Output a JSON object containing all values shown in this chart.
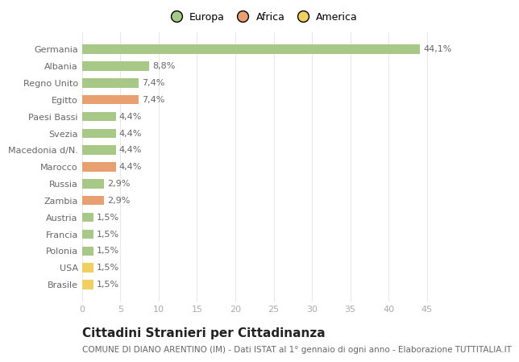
{
  "categories": [
    "Germania",
    "Albania",
    "Regno Unito",
    "Egitto",
    "Paesi Bassi",
    "Svezia",
    "Macedonia d/N.",
    "Marocco",
    "Russia",
    "Zambia",
    "Austria",
    "Francia",
    "Polonia",
    "USA",
    "Brasile"
  ],
  "values": [
    44.1,
    8.8,
    7.4,
    7.4,
    4.4,
    4.4,
    4.4,
    4.4,
    2.9,
    2.9,
    1.5,
    1.5,
    1.5,
    1.5,
    1.5
  ],
  "continent": [
    "Europa",
    "Europa",
    "Europa",
    "Africa",
    "Europa",
    "Europa",
    "Europa",
    "Africa",
    "Europa",
    "Africa",
    "Europa",
    "Europa",
    "Europa",
    "America",
    "America"
  ],
  "labels": [
    "44,1%",
    "8,8%",
    "7,4%",
    "7,4%",
    "4,4%",
    "4,4%",
    "4,4%",
    "4,4%",
    "2,9%",
    "2,9%",
    "1,5%",
    "1,5%",
    "1,5%",
    "1,5%",
    "1,5%"
  ],
  "colors": {
    "Europa": "#a8c888",
    "Africa": "#e8a070",
    "America": "#f0d060"
  },
  "legend_labels": [
    "Europa",
    "Africa",
    "America"
  ],
  "title": "Cittadini Stranieri per Cittadinanza",
  "subtitle": "COMUNE DI DIANO ARENTINO (IM) - Dati ISTAT al 1° gennaio di ogni anno - Elaborazione TUTTITALIA.IT",
  "xlim": [
    0,
    47
  ],
  "xticks": [
    0,
    5,
    10,
    15,
    20,
    25,
    30,
    35,
    40,
    45
  ],
  "bg_color": "#ffffff",
  "grid_color": "#e8e8e8",
  "bar_label_color": "#666666",
  "ylabel_color": "#666666",
  "title_fontsize": 11,
  "subtitle_fontsize": 7.5,
  "label_fontsize": 8,
  "tick_fontsize": 8,
  "legend_fontsize": 9
}
